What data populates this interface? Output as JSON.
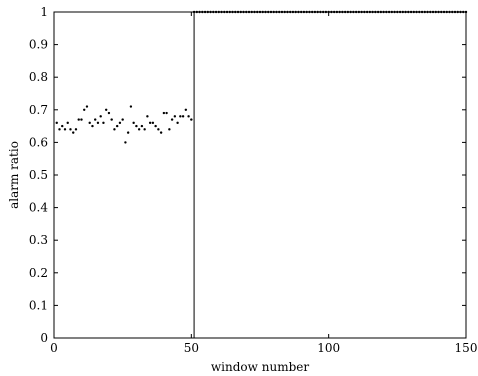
{
  "chart_data": {
    "type": "scatter",
    "title": "",
    "xlabel": "window number",
    "ylabel": "alarm ratio",
    "xlim": [
      0,
      150
    ],
    "ylim": [
      0,
      1
    ],
    "xticks": [
      0,
      50,
      100,
      150
    ],
    "yticks": [
      0,
      0.1,
      0.2,
      0.3,
      0.4,
      0.5,
      0.6,
      0.7,
      0.8,
      0.9,
      1
    ],
    "grid": false,
    "legend": "none",
    "marker_color": "#000000",
    "series": [
      {
        "x": [
          1,
          2,
          3,
          4,
          5,
          6,
          7,
          8,
          9,
          10,
          11,
          12,
          13,
          14,
          15,
          16,
          17,
          18,
          19,
          20,
          21,
          22,
          23,
          24,
          25,
          26,
          27,
          28,
          29,
          30,
          31,
          32,
          33,
          34,
          35,
          36,
          37,
          38,
          39,
          40,
          41,
          42,
          43,
          44,
          45,
          46,
          47,
          48,
          49,
          50
        ],
        "values": [
          0.66,
          0.64,
          0.65,
          0.64,
          0.66,
          0.64,
          0.63,
          0.64,
          0.67,
          0.67,
          0.7,
          0.71,
          0.66,
          0.65,
          0.67,
          0.66,
          0.68,
          0.66,
          0.7,
          0.69,
          0.67,
          0.64,
          0.65,
          0.66,
          0.67,
          0.6,
          0.63,
          0.71,
          0.66,
          0.65,
          0.64,
          0.65,
          0.64,
          0.68,
          0.66,
          0.66,
          0.65,
          0.64,
          0.63,
          0.69,
          0.69,
          0.64,
          0.67,
          0.68,
          0.66,
          0.68,
          0.68,
          0.7,
          0.68,
          0.67
        ]
      },
      {
        "x_range": [
          51,
          150
        ],
        "value": 1
      }
    ],
    "step_line": {
      "x": 51,
      "y": [
        0,
        1
      ]
    }
  }
}
